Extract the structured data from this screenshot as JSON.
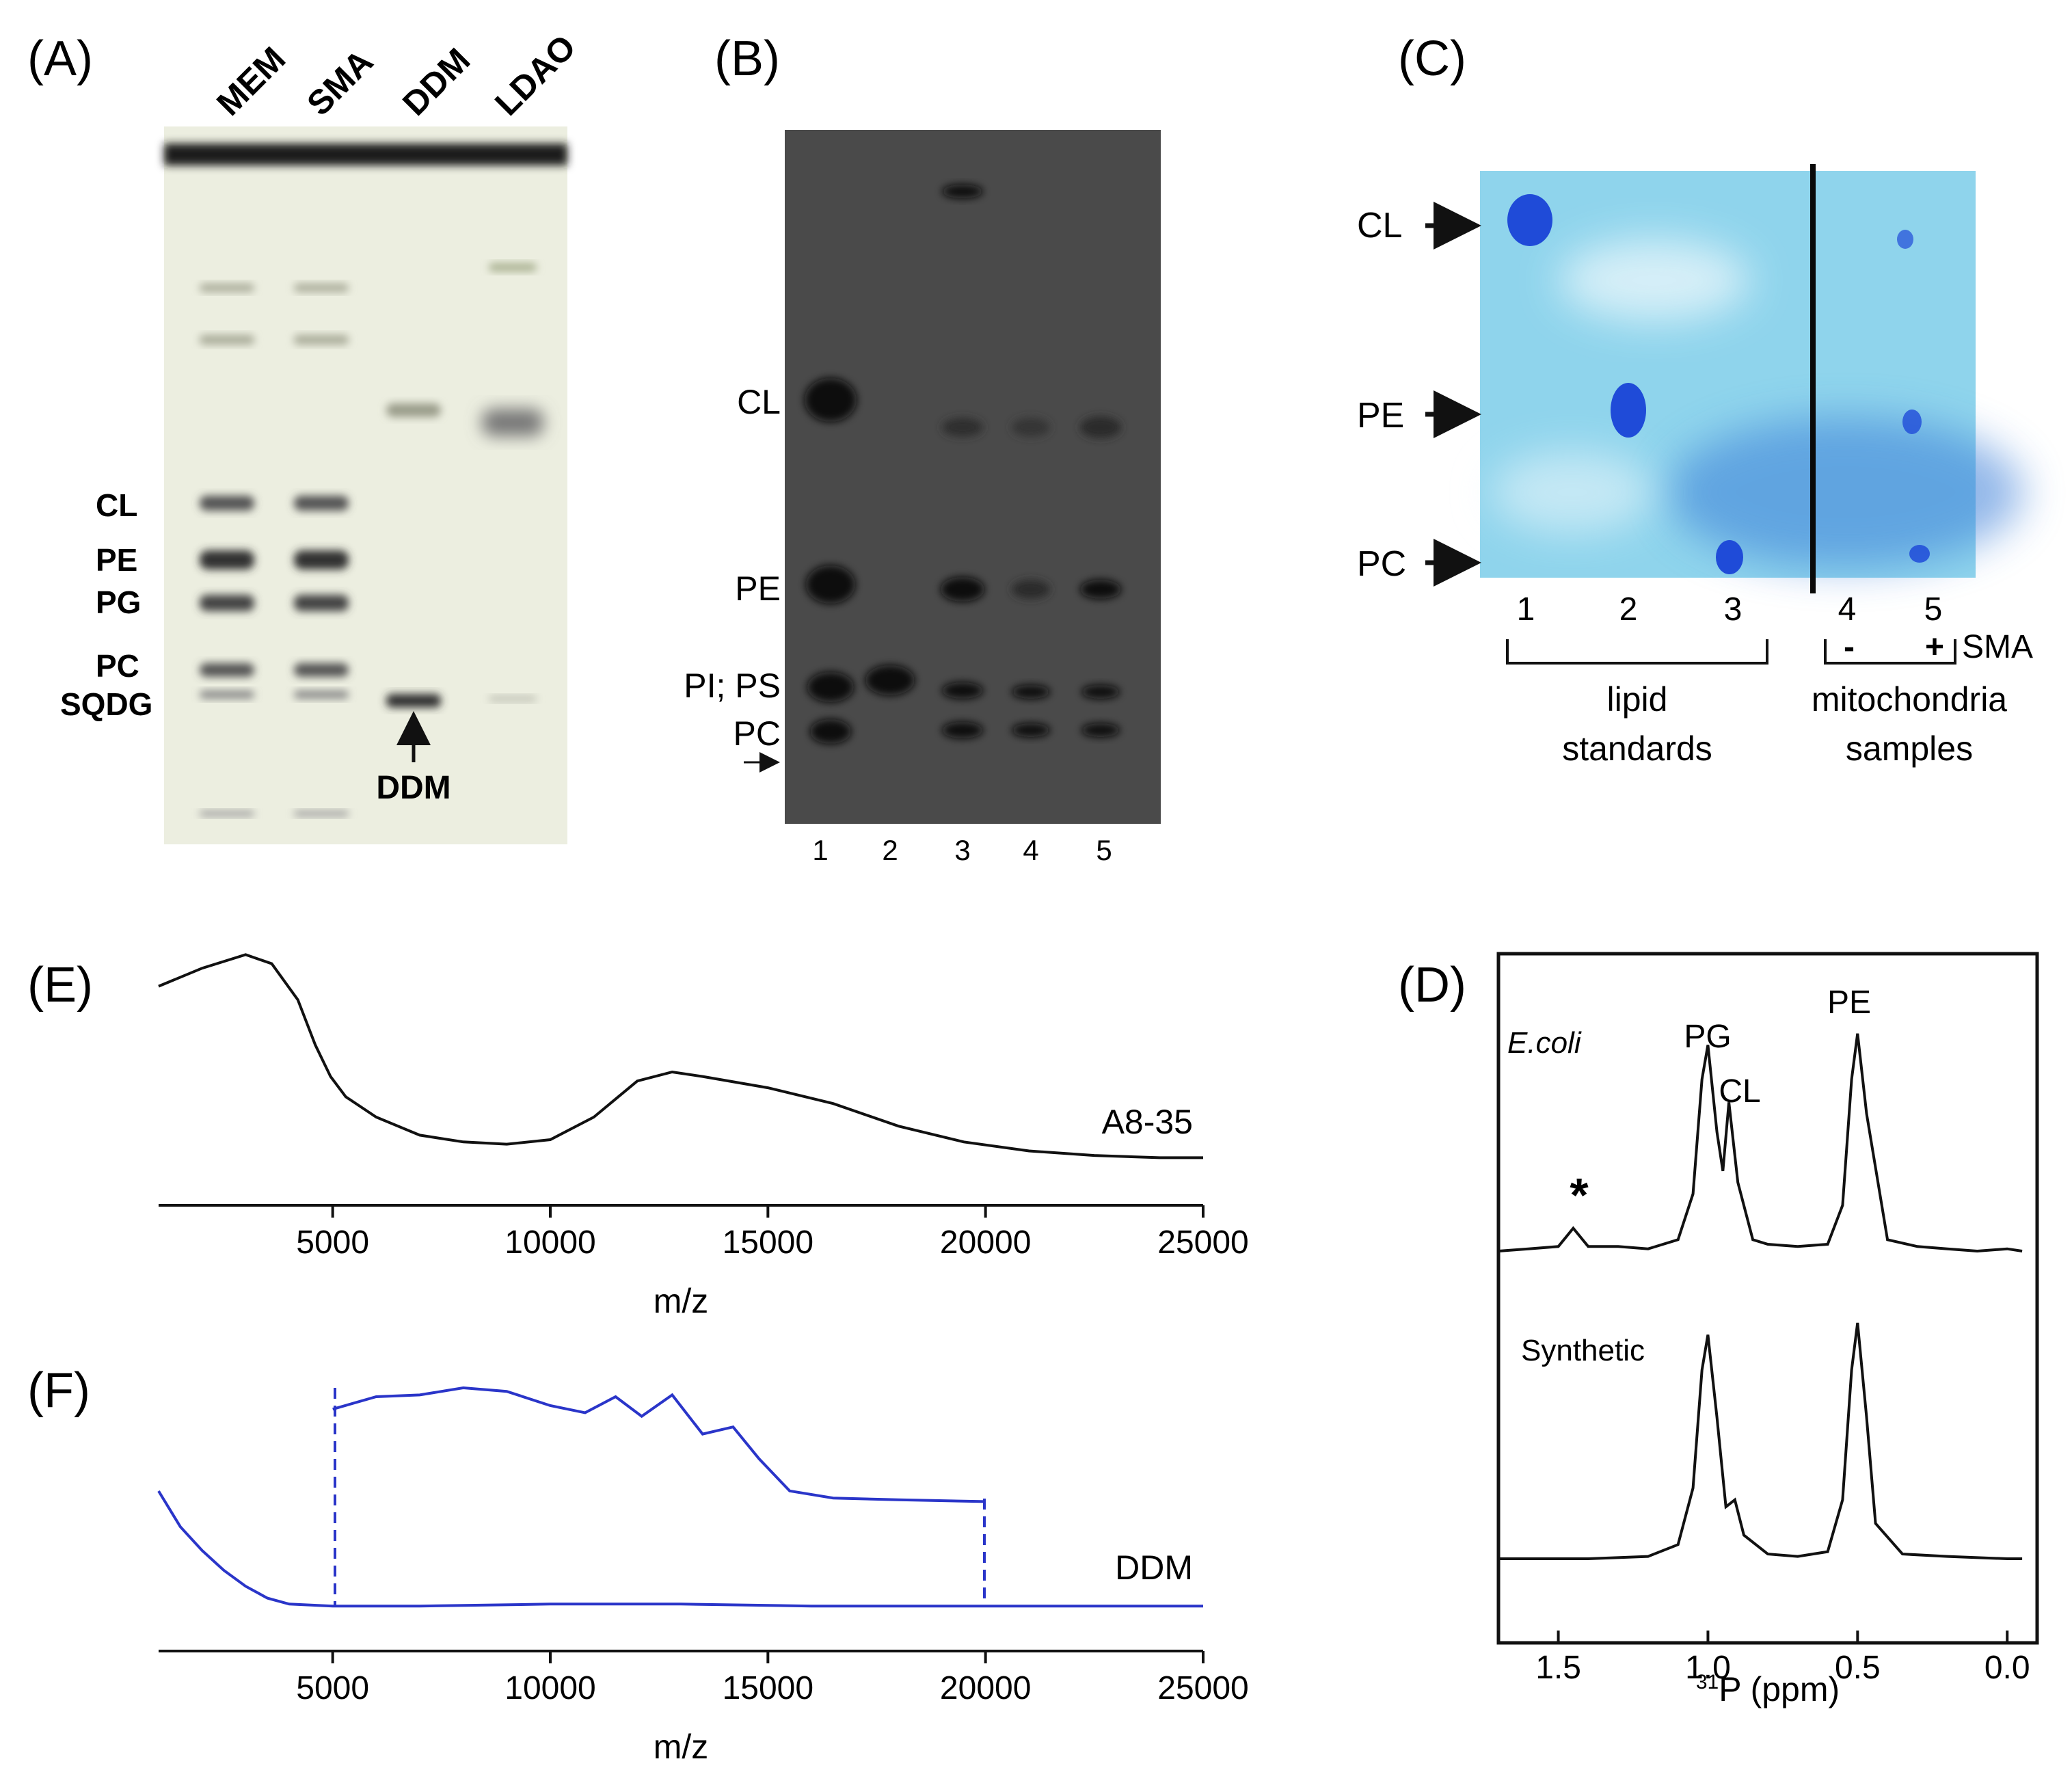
{
  "colors": {
    "gel_a_bg": "#eceee0",
    "gel_b_bg": "#4a4a4a",
    "plate_c_bg": "#8fd4ec",
    "spot_c": "#1f4bd8",
    "ink": "#111111",
    "spectrum_blue": "#2a35c9"
  },
  "panel_a": {
    "label": "(A)",
    "lanes": [
      "MEM",
      "SMA",
      "DDM",
      "LDAO"
    ],
    "bands": [
      "CL",
      "PE",
      "PG",
      "PC",
      "SQDG"
    ],
    "arrow_label": "DDM"
  },
  "panel_b": {
    "label": "(B)",
    "bands": [
      "CL",
      "PE",
      "PI; PS",
      "PC"
    ],
    "lanes": [
      "1",
      "2",
      "3",
      "4",
      "5"
    ]
  },
  "panel_c": {
    "label": "(C)",
    "bands": [
      "CL",
      "PE",
      "PC"
    ],
    "lanes": [
      "1",
      "2",
      "3",
      "4",
      "5"
    ],
    "minus": "-",
    "plus": "+",
    "sma": "SMA",
    "group1": [
      "lipid",
      "standards"
    ],
    "group2": [
      "mitochondria",
      "samples"
    ]
  },
  "panel_d": {
    "label": "(D)",
    "top_trace_label": "E.coli",
    "bottom_trace_label": "Synthetic",
    "peak_labels": [
      "PG",
      "CL",
      "PE"
    ],
    "asterisk": "*",
    "xaxis_prefix": "31",
    "xaxis_label": "P (ppm)"
  },
  "panel_e": {
    "label": "(E)",
    "trace_label": "A8-35",
    "xlabel": "m/z"
  },
  "panel_f": {
    "label": "(F)",
    "trace_label": "DDM",
    "xlabel": "m/z"
  },
  "chart_data": [
    {
      "type": "line",
      "panel": "E",
      "title": "",
      "xlabel": "m/z",
      "ylabel": "",
      "xlim": [
        1000,
        25000
      ],
      "xticks": [
        5000,
        10000,
        15000,
        20000,
        25000
      ],
      "series": [
        {
          "name": "A8-35",
          "x": [
            1000,
            2000,
            3000,
            3600,
            4200,
            4600,
            4950,
            5300,
            6000,
            7000,
            8000,
            9000,
            10000,
            11000,
            12000,
            12800,
            13500,
            15000,
            16500,
            18000,
            19500,
            21000,
            22500,
            24000,
            25000
          ],
          "y": [
            0.78,
            0.86,
            0.92,
            0.88,
            0.72,
            0.52,
            0.38,
            0.29,
            0.2,
            0.12,
            0.09,
            0.08,
            0.1,
            0.2,
            0.36,
            0.4,
            0.38,
            0.33,
            0.26,
            0.16,
            0.09,
            0.05,
            0.03,
            0.02,
            0.02
          ]
        }
      ]
    },
    {
      "type": "line",
      "panel": "F",
      "title": "",
      "xlabel": "m/z",
      "ylabel": "",
      "xlim": [
        1000,
        25000
      ],
      "xticks": [
        5000,
        10000,
        15000,
        20000,
        25000
      ],
      "series": [
        {
          "name": "DDM",
          "x": [
            1000,
            1500,
            2000,
            2500,
            3000,
            3500,
            4000,
            5000,
            7000,
            10000,
            13000,
            16000,
            20000,
            25000
          ],
          "y": [
            0.6,
            0.42,
            0.3,
            0.2,
            0.12,
            0.06,
            0.03,
            0.02,
            0.02,
            0.03,
            0.03,
            0.02,
            0.02,
            0.02
          ]
        },
        {
          "name": "DDM (zoomed inset, 5000-20000)",
          "x": [
            5000,
            6000,
            7000,
            8000,
            9000,
            10000,
            10800,
            11500,
            12100,
            12800,
            13500,
            14200,
            14800,
            15500,
            16500,
            18000,
            20000
          ],
          "y": [
            0.88,
            0.95,
            0.96,
            1.0,
            0.98,
            0.9,
            0.86,
            0.95,
            0.84,
            0.96,
            0.74,
            0.78,
            0.6,
            0.42,
            0.38,
            0.37,
            0.36
          ]
        }
      ]
    },
    {
      "type": "line",
      "panel": "D",
      "title": "",
      "xlabel": "31P (ppm)",
      "ylabel": "",
      "xlim": [
        1.7,
        -0.1
      ],
      "xticks": [
        1.5,
        1.0,
        0.5,
        0.0
      ],
      "series": [
        {
          "name": "E.coli",
          "x": [
            1.7,
            1.6,
            1.5,
            1.45,
            1.4,
            1.3,
            1.2,
            1.1,
            1.05,
            1.02,
            1.0,
            0.97,
            0.95,
            0.93,
            0.9,
            0.85,
            0.8,
            0.7,
            0.6,
            0.55,
            0.52,
            0.5,
            0.47,
            0.4,
            0.3,
            0.2,
            0.1,
            0.0,
            -0.05
          ],
          "y": [
            0.0,
            0.01,
            0.02,
            0.1,
            0.02,
            0.02,
            0.01,
            0.05,
            0.25,
            0.75,
            0.9,
            0.52,
            0.35,
            0.65,
            0.3,
            0.05,
            0.03,
            0.02,
            0.03,
            0.2,
            0.75,
            0.95,
            0.6,
            0.05,
            0.02,
            0.01,
            0.0,
            0.01,
            0.0
          ]
        },
        {
          "name": "Synthetic",
          "x": [
            1.7,
            1.4,
            1.2,
            1.1,
            1.05,
            1.02,
            1.0,
            0.97,
            0.94,
            0.91,
            0.88,
            0.8,
            0.7,
            0.6,
            0.55,
            0.52,
            0.5,
            0.47,
            0.44,
            0.35,
            0.2,
            0.0,
            -0.05
          ],
          "y": [
            0.0,
            0.0,
            0.01,
            0.06,
            0.3,
            0.8,
            0.95,
            0.6,
            0.22,
            0.25,
            0.1,
            0.02,
            0.01,
            0.03,
            0.25,
            0.8,
            1.0,
            0.6,
            0.15,
            0.02,
            0.01,
            0.0,
            0.0
          ]
        }
      ]
    }
  ]
}
